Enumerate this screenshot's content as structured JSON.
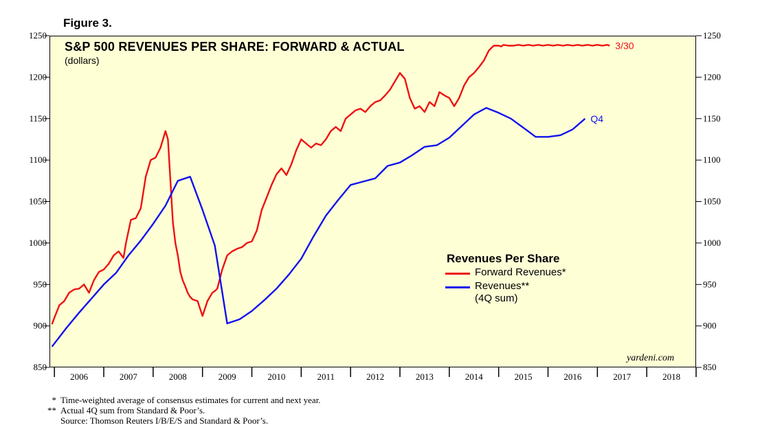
{
  "figure_label": "Figure 3.",
  "footnotes": [
    {
      "mark": "*",
      "text": "Time-weighted average of consensus estimates for current and next year."
    },
    {
      "mark": "**",
      "text": "Actual 4Q sum from Standard & Poor’s."
    },
    {
      "mark": "",
      "text": "Source: Thomson Reuters I/B/E/S and Standard & Poor’s."
    }
  ],
  "watermark": "yardeni.com",
  "colors": {
    "forward": "#ee1111",
    "actual": "#1111ee",
    "plot_bg": "#ffffd6"
  },
  "chart_data": {
    "type": "line",
    "title": "S&P 500 REVENUES PER SHARE: FORWARD & ACTUAL",
    "subtitle": "(dollars)",
    "xlabel": "",
    "ylabel": "",
    "ylim": [
      850,
      1250
    ],
    "xlim": [
      2005.9,
      2019.0
    ],
    "yticks": [
      850,
      900,
      950,
      1000,
      1050,
      1100,
      1150,
      1200,
      1250
    ],
    "x_tick_labels": [
      "2006",
      "2007",
      "2008",
      "2009",
      "2010",
      "2011",
      "2012",
      "2013",
      "2014",
      "2015",
      "2016",
      "2017",
      "2018"
    ],
    "grid": false,
    "legend": {
      "title": "Revenues Per Share",
      "placement": "center-right",
      "entries": [
        {
          "label": "Forward Revenues*",
          "series": "forward"
        },
        {
          "label": "Revenues**",
          "sublabel": "(4Q sum)",
          "series": "actual"
        }
      ]
    },
    "series": [
      {
        "key": "forward",
        "end_label": "3/30",
        "x": [
          2005.95,
          2006.0,
          2006.1,
          2006.2,
          2006.3,
          2006.4,
          2006.5,
          2006.6,
          2006.7,
          2006.8,
          2006.9,
          2007.0,
          2007.1,
          2007.2,
          2007.3,
          2007.4,
          2007.45,
          2007.55,
          2007.65,
          2007.75,
          2007.85,
          2007.95,
          2008.05,
          2008.15,
          2008.25,
          2008.3,
          2008.35,
          2008.4,
          2008.45,
          2008.5,
          2008.55,
          2008.6,
          2008.65,
          2008.7,
          2008.75,
          2008.8,
          2008.9,
          2009.0,
          2009.1,
          2009.2,
          2009.25,
          2009.3,
          2009.4,
          2009.5,
          2009.6,
          2009.7,
          2009.8,
          2009.9,
          2010.0,
          2010.1,
          2010.2,
          2010.3,
          2010.4,
          2010.5,
          2010.6,
          2010.7,
          2010.8,
          2010.9,
          2011.0,
          2011.1,
          2011.2,
          2011.3,
          2011.4,
          2011.5,
          2011.6,
          2011.7,
          2011.8,
          2011.9,
          2012.0,
          2012.1,
          2012.2,
          2012.3,
          2012.4,
          2012.5,
          2012.6,
          2012.7,
          2012.8,
          2012.9,
          2013.0,
          2013.1,
          2013.2,
          2013.3,
          2013.4,
          2013.5,
          2013.6,
          2013.7,
          2013.8,
          2013.9,
          2014.0,
          2014.1,
          2014.2,
          2014.3,
          2014.4,
          2014.5,
          2014.6,
          2014.7,
          2014.75,
          2014.8,
          2014.9,
          2015.0,
          2015.05,
          2015.1,
          2015.2,
          2015.3,
          2015.4,
          2015.5,
          2015.6,
          2015.7,
          2015.8,
          2015.9,
          2016.0,
          2016.1,
          2016.2,
          2016.3,
          2016.4,
          2016.5,
          2016.6,
          2016.7,
          2016.8,
          2016.9,
          2017.0,
          2017.1,
          2017.2,
          2017.25
        ],
        "values": [
          902,
          910,
          925,
          930,
          940,
          944,
          945,
          950,
          940,
          955,
          965,
          968,
          975,
          985,
          990,
          982,
          1000,
          1028,
          1030,
          1042,
          1080,
          1100,
          1103,
          1115,
          1135,
          1125,
          1075,
          1025,
          1000,
          985,
          965,
          955,
          948,
          940,
          935,
          932,
          930,
          912,
          930,
          940,
          942,
          945,
          968,
          985,
          990,
          993,
          995,
          1000,
          1002,
          1015,
          1040,
          1055,
          1070,
          1083,
          1090,
          1082,
          1095,
          1112,
          1125,
          1120,
          1115,
          1120,
          1118,
          1125,
          1135,
          1140,
          1135,
          1150,
          1155,
          1160,
          1162,
          1158,
          1165,
          1170,
          1172,
          1178,
          1185,
          1195,
          1205,
          1198,
          1175,
          1162,
          1165,
          1158,
          1170,
          1165,
          1182,
          1178,
          1175,
          1165,
          1175,
          1190,
          1200,
          1205,
          1212,
          1220,
          1226,
          1232,
          1238,
          1238,
          1237,
          1239,
          1238,
          1238,
          1239,
          1238,
          1239,
          1238,
          1239,
          1238,
          1239,
          1238,
          1239,
          1238,
          1239,
          1238,
          1239,
          1238,
          1239,
          1238,
          1239,
          1238,
          1239,
          1238
        ]
      },
      {
        "key": "actual",
        "end_label": "Q4",
        "x": [
          2005.95,
          2006.25,
          2006.5,
          2006.75,
          2007.0,
          2007.25,
          2007.5,
          2007.75,
          2008.0,
          2008.25,
          2008.5,
          2008.75,
          2009.0,
          2009.25,
          2009.5,
          2009.75,
          2010.0,
          2010.25,
          2010.5,
          2010.75,
          2011.0,
          2011.25,
          2011.5,
          2011.75,
          2012.0,
          2012.25,
          2012.5,
          2012.75,
          2013.0,
          2013.25,
          2013.5,
          2013.75,
          2014.0,
          2014.25,
          2014.5,
          2014.75,
          2015.0,
          2015.25,
          2015.5,
          2015.75,
          2016.0,
          2016.25,
          2016.5,
          2016.75
        ],
        "values": [
          875,
          898,
          916,
          933,
          950,
          964,
          985,
          1003,
          1023,
          1045,
          1075,
          1080,
          1040,
          997,
          903,
          908,
          918,
          931,
          945,
          962,
          981,
          1008,
          1033,
          1052,
          1070,
          1074,
          1078,
          1093,
          1097,
          1106,
          1116,
          1118,
          1127,
          1141,
          1155,
          1163,
          1157,
          1150,
          1139,
          1128,
          1128,
          1130,
          1137,
          1150
        ]
      }
    ]
  }
}
